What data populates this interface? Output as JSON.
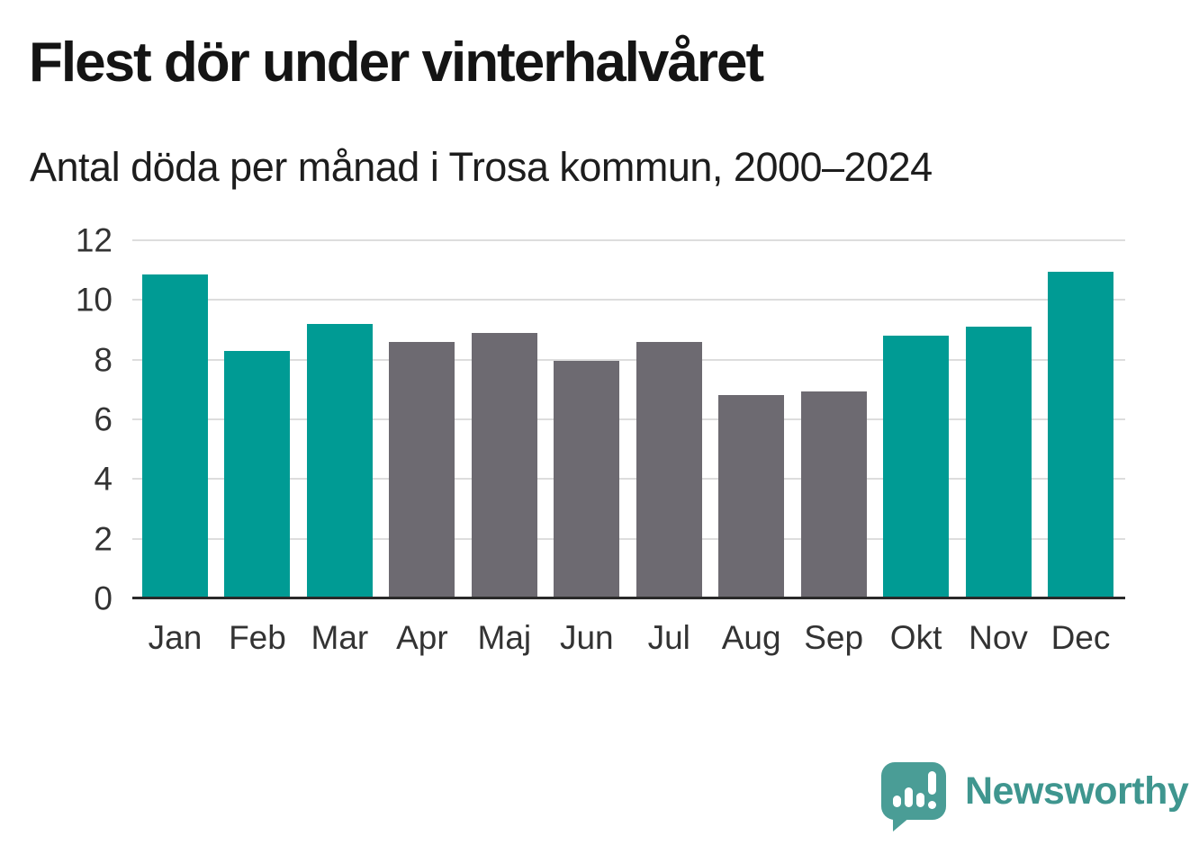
{
  "header": {
    "title": "Flest dör under vinterhalvåret",
    "subtitle": "Antal döda per månad i Trosa kommun, 2000–2024"
  },
  "chart_data": {
    "type": "bar",
    "title": "Flest dör under vinterhalvåret",
    "subtitle": "Antal döda per månad i Trosa kommun, 2000–2024",
    "categories": [
      "Jan",
      "Feb",
      "Mar",
      "Apr",
      "Maj",
      "Jun",
      "Jul",
      "Aug",
      "Sep",
      "Okt",
      "Nov",
      "Dec"
    ],
    "values": [
      10.85,
      8.3,
      9.2,
      8.6,
      8.9,
      7.95,
      8.6,
      6.8,
      6.95,
      8.8,
      9.1,
      10.95
    ],
    "highlighted_categories": [
      "Jan",
      "Feb",
      "Mar",
      "Okt",
      "Nov",
      "Dec"
    ],
    "bar_color_highlight": "#009B94",
    "bar_color_default": "#6D6A71",
    "xlabel": "",
    "ylabel": "",
    "ylim": [
      0,
      12
    ],
    "yticks": [
      0,
      2,
      4,
      6,
      8,
      10,
      12
    ],
    "grid": true,
    "legend": "none"
  },
  "branding": {
    "logo_text": "Newsworthy",
    "logo_color": "#3F968F",
    "logo_icon": "bar-chart-speech-bubble"
  }
}
